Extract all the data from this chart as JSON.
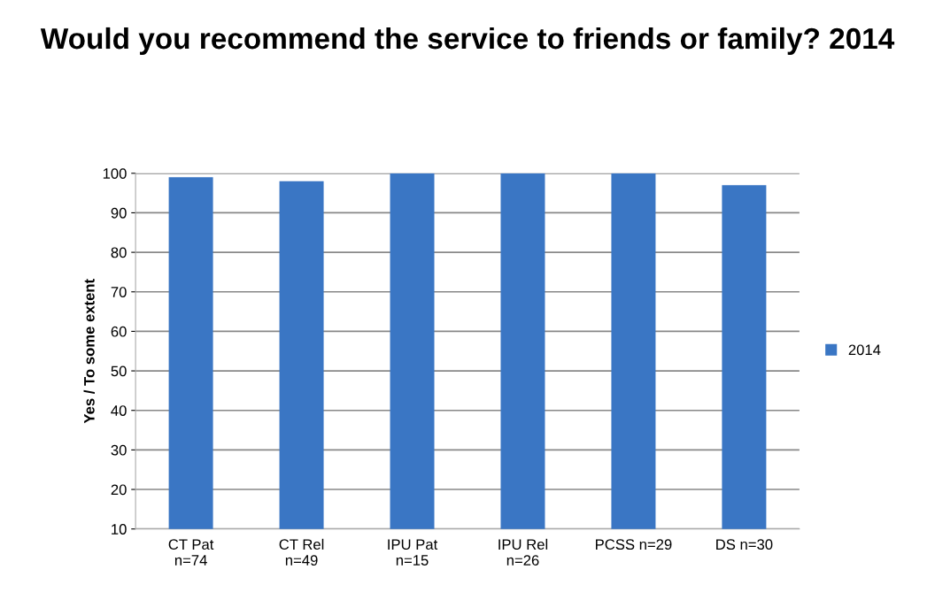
{
  "chart_data": {
    "type": "bar",
    "title": "Would you recommend the service to friends or family? 2014",
    "ylabel": "Yes / To some extent",
    "categories": [
      "CT Pat\nn=74",
      "CT Rel\nn=49",
      "IPU Pat\nn=15",
      "IPU Rel\nn=26",
      "PCSS n=29",
      "DS n=30"
    ],
    "series": [
      {
        "name": "2014",
        "color": "#3a76c4",
        "values": [
          99,
          98,
          100,
          100,
          100,
          97
        ]
      }
    ],
    "ylim": [
      10,
      100
    ],
    "yticks": [
      10,
      20,
      30,
      40,
      50,
      60,
      70,
      80,
      90,
      100
    ],
    "grid": "y",
    "legend": "right"
  }
}
